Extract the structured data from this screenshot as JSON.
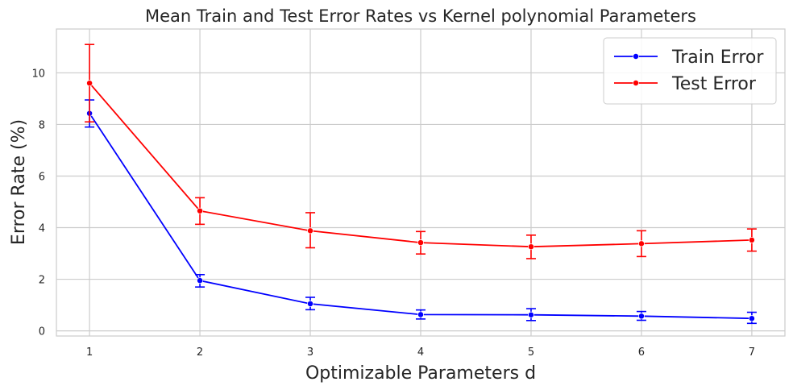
{
  "chart_data": {
    "type": "line",
    "title": "Mean Train and Test Error Rates vs Kernel polynomial Parameters",
    "xlabel": "Optimizable Parameters d",
    "ylabel": "Error Rate (%)",
    "x": [
      1,
      2,
      3,
      4,
      5,
      6,
      7
    ],
    "xticks": [
      "1",
      "2",
      "3",
      "4",
      "5",
      "6",
      "7"
    ],
    "yticks": [
      "0",
      "2",
      "4",
      "6",
      "8",
      "10"
    ],
    "xlim": [
      0.7,
      7.3
    ],
    "ylim": [
      -0.2,
      11.7
    ],
    "grid": true,
    "legend_position": "top-right",
    "series": [
      {
        "name": "Train Error",
        "color": "#0000ff",
        "values": [
          8.43,
          1.95,
          1.05,
          0.63,
          0.62,
          0.57,
          0.48
        ],
        "error_low": [
          7.9,
          1.7,
          0.82,
          0.46,
          0.4,
          0.41,
          0.29
        ],
        "error_high": [
          8.95,
          2.18,
          1.3,
          0.81,
          0.86,
          0.75,
          0.72
        ]
      },
      {
        "name": "Test Error",
        "color": "#ff0000",
        "values": [
          9.6,
          4.65,
          3.88,
          3.42,
          3.26,
          3.38,
          3.52
        ],
        "error_low": [
          8.1,
          4.13,
          3.22,
          2.98,
          2.8,
          2.88,
          3.09
        ],
        "error_high": [
          11.1,
          5.16,
          4.58,
          3.85,
          3.71,
          3.88,
          3.95
        ]
      }
    ]
  }
}
